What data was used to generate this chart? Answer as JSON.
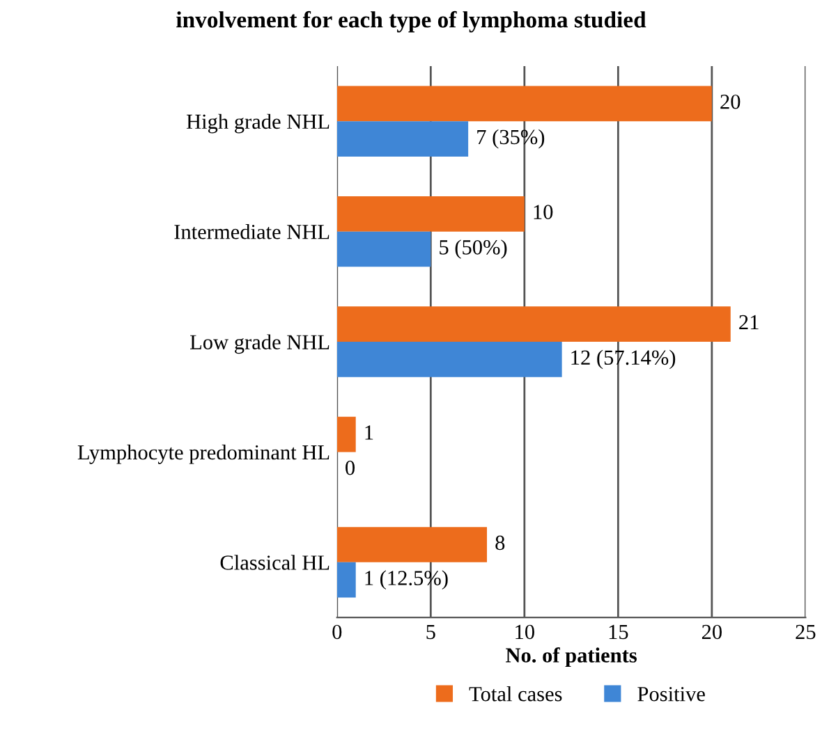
{
  "chart_data": {
    "type": "bar",
    "orientation": "horizontal",
    "title": "involvement for each type of lymphoma studied",
    "xlabel": "No. of patients",
    "categories": [
      "High grade NHL",
      "Intermediate NHL",
      "Low grade NHL",
      "Lymphocyte predominant HL",
      "Classical HL"
    ],
    "series": [
      {
        "name": "Total cases",
        "color": "#ed6c1c",
        "values": [
          20,
          10,
          21,
          1,
          8
        ],
        "value_labels": [
          "20",
          "10",
          "21",
          "1",
          "8"
        ]
      },
      {
        "name": "Positive",
        "color": "#3f86d6",
        "values": [
          7,
          5,
          12,
          0,
          1
        ],
        "value_labels": [
          "7 (35%)",
          "5 (50%)",
          "12 (57.14%)",
          "0",
          "1 (12.5%)"
        ]
      }
    ],
    "xlim": [
      0,
      25
    ],
    "xticks": [
      0,
      5,
      10,
      15,
      20,
      25
    ],
    "grid": "x",
    "legend": "bottom"
  }
}
